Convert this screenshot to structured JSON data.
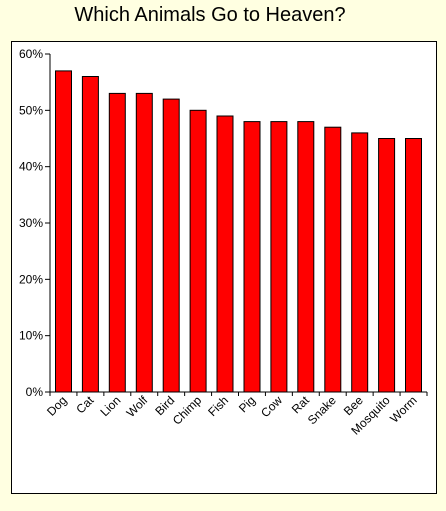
{
  "chart_data": {
    "type": "bar",
    "title": "Which Animals Go to Heaven?",
    "categories": [
      "Dog",
      "Cat",
      "Lion",
      "Wolf",
      "Bird",
      "Chimp",
      "Fish",
      "Pig",
      "Cow",
      "Rat",
      "Snake",
      "Bee",
      "Mosquito",
      "Worm"
    ],
    "values": [
      57,
      56,
      53,
      53,
      52,
      50,
      49,
      48,
      48,
      48,
      47,
      46,
      45,
      45
    ],
    "value_unit": "%",
    "ylim": [
      0,
      60
    ],
    "yticks": [
      "0%",
      "10%",
      "20%",
      "30%",
      "40%",
      "50%",
      "60%"
    ],
    "xlabel": "",
    "ylabel": "",
    "grid": false,
    "legend": "none",
    "bar_color": "#FF0000",
    "background_color": "#FFFFE1"
  }
}
